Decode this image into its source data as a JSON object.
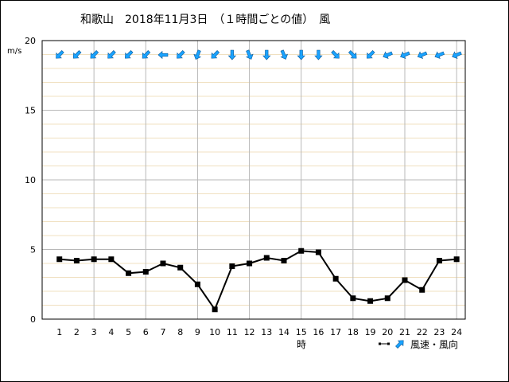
{
  "chart_data": {
    "type": "line",
    "title": "和歌山　2018年11月3日　（１時間ごとの値）　風",
    "ylabel": "m/s",
    "xlabel": "時",
    "ylim": [
      0,
      20
    ],
    "yticks": [
      0,
      5,
      10,
      15,
      20
    ],
    "ytick_labels": [
      "0",
      "5",
      "10",
      "15",
      "20"
    ],
    "minor_grid_step": 1,
    "grid": true,
    "x": [
      1,
      2,
      3,
      4,
      5,
      6,
      7,
      8,
      9,
      10,
      11,
      12,
      13,
      14,
      15,
      16,
      17,
      18,
      19,
      20,
      21,
      22,
      23,
      24
    ],
    "xtick_labels": [
      "1",
      "2",
      "3",
      "4",
      "5",
      "6",
      "7",
      "8",
      "9",
      "10",
      "11",
      "12",
      "13",
      "14",
      "15",
      "16",
      "17",
      "18",
      "19",
      "20",
      "21",
      "22",
      "23",
      "24"
    ],
    "series": [
      {
        "name": "風速",
        "values": [
          4.3,
          4.2,
          4.3,
          4.3,
          3.3,
          3.4,
          4.0,
          3.7,
          2.5,
          0.7,
          3.8,
          4.0,
          4.4,
          4.2,
          4.9,
          4.8,
          2.9,
          1.5,
          1.3,
          1.5,
          2.8,
          2.1,
          4.2,
          4.3
        ],
        "color": "#000000"
      }
    ],
    "wind_direction_deg": [
      45,
      45,
      45,
      45,
      45,
      45,
      90,
      45,
      22,
      45,
      0,
      337,
      0,
      337,
      0,
      0,
      315,
      315,
      45,
      67,
      67,
      67,
      67,
      67
    ],
    "legend": {
      "label": "風速・風向",
      "position": "bottom-right"
    },
    "arrow_color": "#1aa3ff",
    "grid_major_color": "#b8b8b8",
    "grid_minor_color": "#f0e0c0"
  }
}
